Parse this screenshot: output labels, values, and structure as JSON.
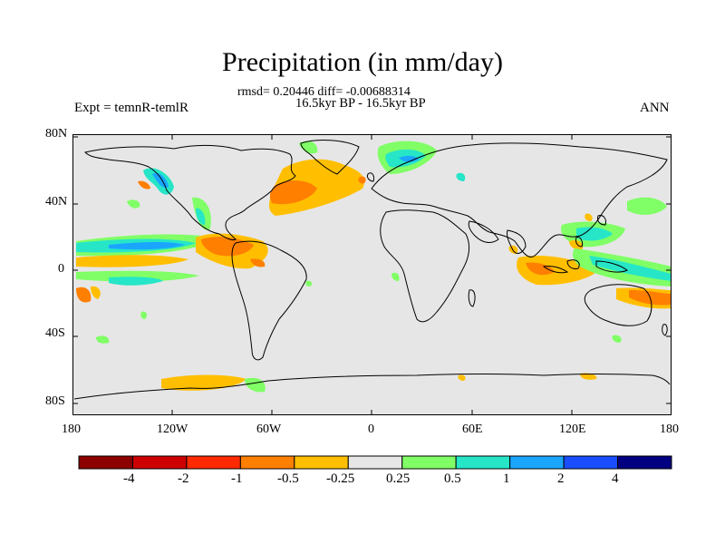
{
  "title": "Precipitation (in mm/day)",
  "stats_line": "rmsd= 0.20446 diff= -0.00688314",
  "period_line": "16.5kyr BP - 16.5kyr BP",
  "experiment": "Expt = temnR-temlR",
  "season": "ANN",
  "axes": {
    "lat_labels": [
      "80N",
      "40N",
      "0",
      "40S",
      "80S"
    ],
    "lon_labels": [
      "180",
      "120W",
      "60W",
      "0",
      "60E",
      "120E",
      "180"
    ]
  },
  "colorbar": {
    "colors": [
      "#8c0000",
      "#cc0000",
      "#ff2a00",
      "#ff7f00",
      "#ffbf00",
      "#e6e6e6",
      "#80ff66",
      "#26e6c7",
      "#1aa6ff",
      "#1a4dff",
      "#000080"
    ],
    "labels": [
      "-4",
      "-2",
      "-1",
      "-0.5",
      "-0.25",
      "0.25",
      "0.5",
      "1",
      "2",
      "4"
    ]
  },
  "map_colors": {
    "background": "#e6e6e6",
    "coast": "#000000"
  }
}
